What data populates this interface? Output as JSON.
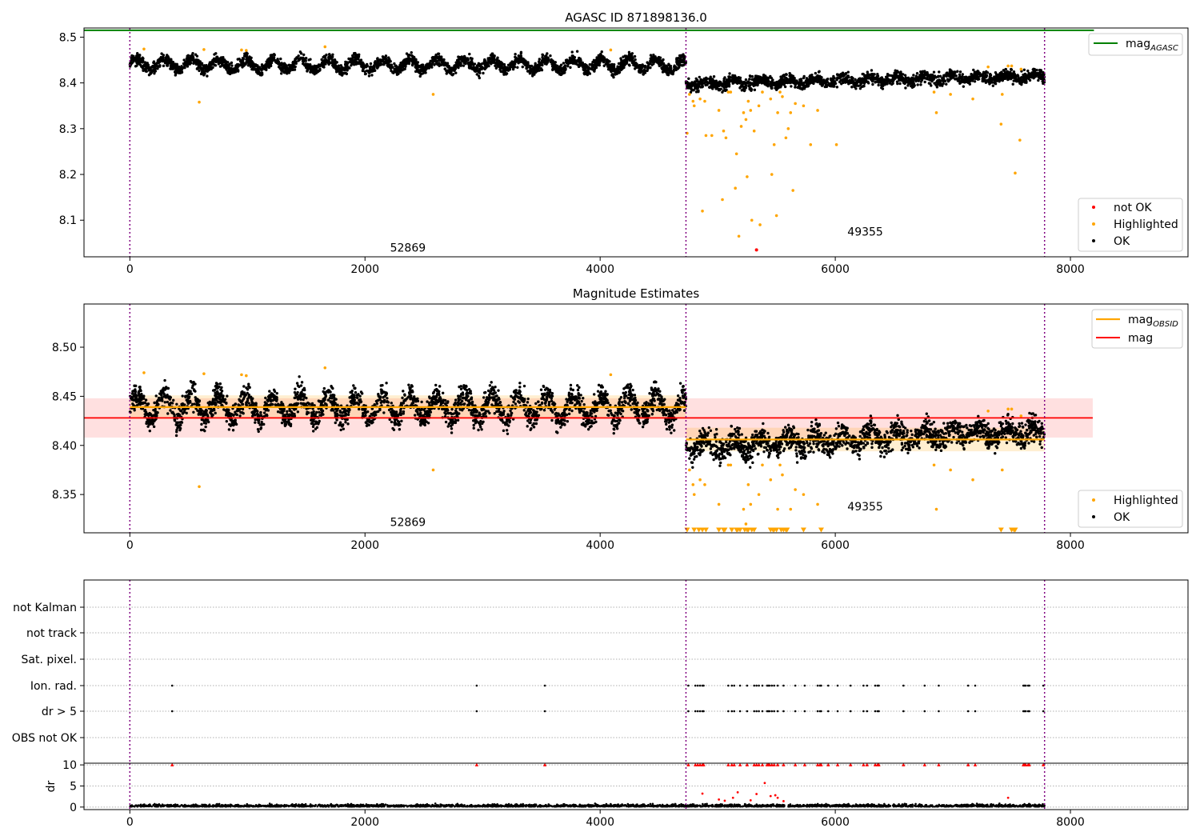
{
  "chart_data": [
    {
      "type": "scatter",
      "title": "AGASC ID 871898136.0",
      "xlim": [
        -390,
        9000
      ],
      "ylim": [
        8.02,
        8.52
      ],
      "x_ticks": [
        0,
        2000,
        4000,
        6000,
        8000
      ],
      "y_ticks": [
        8.1,
        8.2,
        8.3,
        8.4,
        8.5
      ],
      "x_tick_labels": [
        "0",
        "2000",
        "4000",
        "6000",
        "8000"
      ],
      "y_tick_labels": [
        "8.1",
        "8.2",
        "8.3",
        "8.4",
        "8.5"
      ],
      "observation_boundaries": [
        0,
        4730,
        7780
      ],
      "obsid_labels": [
        {
          "text": "52869",
          "x": 2365,
          "y": 8.04
        },
        {
          "text": "49355",
          "x": 6255,
          "y": 8.075
        }
      ],
      "mag_agasc": 8.515,
      "mag_agasc_xrange": [
        -390,
        8200
      ],
      "segments": [
        {
          "x": [
            0,
            4730
          ],
          "mean": 8.44,
          "amplitude": 0.012,
          "noise": 0.02
        },
        {
          "x": [
            4730,
            7780
          ],
          "mean_start": 8.398,
          "mean_end": 8.415,
          "amplitude": 0.006,
          "noise": 0.02
        }
      ],
      "highlighted_points": [
        [
          120,
          8.474
        ],
        [
          590,
          8.358
        ],
        [
          630,
          8.473
        ],
        [
          950,
          8.472
        ],
        [
          990,
          8.471
        ],
        [
          1660,
          8.479
        ],
        [
          2580,
          8.375
        ],
        [
          4090,
          8.472
        ],
        [
          4740,
          8.29
        ],
        [
          4760,
          8.375
        ],
        [
          4790,
          8.36
        ],
        [
          4800,
          8.35
        ],
        [
          4850,
          8.365
        ],
        [
          4870,
          8.12
        ],
        [
          4890,
          8.36
        ],
        [
          4900,
          8.285
        ],
        [
          4950,
          8.285
        ],
        [
          5010,
          8.34
        ],
        [
          5040,
          8.145
        ],
        [
          5050,
          8.295
        ],
        [
          5070,
          8.28
        ],
        [
          5090,
          8.38
        ],
        [
          5110,
          8.38
        ],
        [
          5150,
          8.17
        ],
        [
          5160,
          8.245
        ],
        [
          5180,
          8.065
        ],
        [
          5200,
          8.305
        ],
        [
          5220,
          8.335
        ],
        [
          5240,
          8.32
        ],
        [
          5250,
          8.195
        ],
        [
          5260,
          8.36
        ],
        [
          5280,
          8.34
        ],
        [
          5290,
          8.1
        ],
        [
          5310,
          8.295
        ],
        [
          5350,
          8.35
        ],
        [
          5360,
          8.09
        ],
        [
          5380,
          8.38
        ],
        [
          5450,
          8.365
        ],
        [
          5460,
          8.2
        ],
        [
          5480,
          8.265
        ],
        [
          5500,
          8.11
        ],
        [
          5510,
          8.335
        ],
        [
          5530,
          8.38
        ],
        [
          5550,
          8.37
        ],
        [
          5580,
          8.28
        ],
        [
          5600,
          8.3
        ],
        [
          5620,
          8.335
        ],
        [
          5640,
          8.165
        ],
        [
          5660,
          8.355
        ],
        [
          5730,
          8.35
        ],
        [
          5790,
          8.265
        ],
        [
          5850,
          8.34
        ],
        [
          6010,
          8.265
        ],
        [
          6840,
          8.38
        ],
        [
          6860,
          8.335
        ],
        [
          6980,
          8.375
        ],
        [
          7170,
          8.365
        ],
        [
          7300,
          8.435
        ],
        [
          7410,
          8.31
        ],
        [
          7420,
          8.375
        ],
        [
          7470,
          8.437
        ],
        [
          7500,
          8.437
        ],
        [
          7530,
          8.203
        ],
        [
          7570,
          8.275
        ],
        [
          7580,
          8.43
        ]
      ],
      "not_ok_points": [
        [
          5330,
          8.035
        ]
      ],
      "legends": [
        {
          "position": "upper right",
          "entries": [
            "mag$_{AGASC}$"
          ]
        },
        {
          "position": "lower right",
          "entries": [
            "not OK",
            "Highlighted",
            "OK"
          ]
        }
      ]
    },
    {
      "type": "scatter",
      "title": "Magnitude Estimates",
      "xlim": [
        -390,
        9000
      ],
      "ylim": [
        8.311,
        8.544
      ],
      "x_ticks": [
        0,
        2000,
        4000,
        6000,
        8000
      ],
      "y_ticks": [
        8.35,
        8.4,
        8.45,
        8.5
      ],
      "x_tick_labels": [
        "0",
        "2000",
        "4000",
        "6000",
        "8000"
      ],
      "y_tick_labels": [
        "8.35",
        "8.40",
        "8.45",
        "8.50"
      ],
      "observation_boundaries": [
        0,
        4730,
        7780
      ],
      "obsid_labels": [
        {
          "text": "52869",
          "x": 2365,
          "y": 8.322
        },
        {
          "text": "49355",
          "x": 6255,
          "y": 8.338
        }
      ],
      "mag": 8.428,
      "mag_band": [
        8.408,
        8.448
      ],
      "mag_xrange": [
        -390,
        8190
      ],
      "mag_obsid": [
        {
          "x": [
            0,
            4730
          ],
          "mean": 8.439,
          "band": [
            8.427,
            8.451
          ]
        },
        {
          "x": [
            4730,
            7780
          ],
          "mean": 8.406,
          "band": [
            8.394,
            8.418
          ]
        }
      ],
      "below_limit_markers_x": [
        4740,
        4800,
        4840,
        4870,
        4900,
        5010,
        5050,
        5060,
        5120,
        5160,
        5170,
        5190,
        5230,
        5250,
        5260,
        5290,
        5310,
        5450,
        5470,
        5480,
        5500,
        5540,
        5560,
        5580,
        5590,
        5730,
        5880,
        7410,
        7500,
        7520,
        7530
      ],
      "legends": [
        {
          "position": "upper right",
          "entries": [
            "mag$_{OBSID}$",
            "mag"
          ]
        },
        {
          "position": "lower right",
          "entries": [
            "Highlighted",
            "OK"
          ]
        }
      ]
    },
    {
      "type": "scatter",
      "title": "",
      "xlim": [
        -390,
        9000
      ],
      "x_ticks": [
        0,
        2000,
        4000,
        6000,
        8000
      ],
      "x_tick_labels": [
        "0",
        "2000",
        "4000",
        "6000",
        "8000"
      ],
      "observation_boundaries": [
        0,
        4730,
        7780
      ],
      "flag_rows": [
        "not Kalman",
        "not track",
        "Sat. pixel.",
        "Ion. rad.",
        "dr > 5",
        "OBS not OK"
      ],
      "flag_points": {
        "Ion. rad.": [
          360,
          2950,
          3530,
          4750,
          4810,
          4830,
          4850,
          4870,
          4880,
          5090,
          5120,
          5140,
          5190,
          5250,
          5310,
          5330,
          5350,
          5380,
          5420,
          5430,
          5440,
          5460,
          5480,
          5510,
          5560,
          5660,
          5740,
          5850,
          5870,
          5880,
          5940,
          6020,
          6130,
          6240,
          6270,
          6340,
          6360,
          6370,
          6580,
          6760,
          6880,
          7130,
          7190,
          7600,
          7610,
          7620,
          7640,
          7650,
          7770
        ],
        "dr > 5": [
          360,
          2950,
          3530,
          4750,
          4810,
          4830,
          4850,
          4870,
          4880,
          5090,
          5120,
          5140,
          5190,
          5250,
          5310,
          5330,
          5350,
          5380,
          5420,
          5430,
          5440,
          5460,
          5480,
          5510,
          5560,
          5660,
          5740,
          5850,
          5870,
          5880,
          5940,
          6020,
          6130,
          6240,
          6270,
          6340,
          6360,
          6370,
          6580,
          6760,
          6880,
          7130,
          7190,
          7600,
          7610,
          7620,
          7640,
          7650,
          7770
        ]
      },
      "dr_ylabel": "dr",
      "dr_ylim": [
        -0.6,
        10.4
      ],
      "dr_y_ticks": [
        0,
        5,
        10
      ],
      "dr_y_tick_labels": [
        "0",
        "5",
        "10"
      ],
      "dr_clipped_x": [
        360,
        2950,
        3530,
        4750,
        4810,
        4830,
        4850,
        4870,
        4880,
        5090,
        5120,
        5140,
        5190,
        5250,
        5310,
        5330,
        5350,
        5380,
        5420,
        5430,
        5440,
        5460,
        5480,
        5510,
        5560,
        5660,
        5740,
        5850,
        5870,
        5880,
        5940,
        6020,
        6130,
        6240,
        6270,
        6340,
        6360,
        6370,
        6580,
        6760,
        6880,
        7130,
        7190,
        7600,
        7610,
        7620,
        7640,
        7650,
        7770
      ],
      "dr_outliers": [
        [
          4870,
          3.2
        ],
        [
          5010,
          1.8
        ],
        [
          5060,
          1.5
        ],
        [
          5130,
          2.2
        ],
        [
          5170,
          3.5
        ],
        [
          5280,
          1.6
        ],
        [
          5330,
          3.1
        ],
        [
          5400,
          5.7
        ],
        [
          5450,
          2.6
        ],
        [
          5490,
          2.8
        ],
        [
          5510,
          2.2
        ],
        [
          5560,
          1.4
        ],
        [
          7470,
          2.2
        ]
      ]
    }
  ]
}
